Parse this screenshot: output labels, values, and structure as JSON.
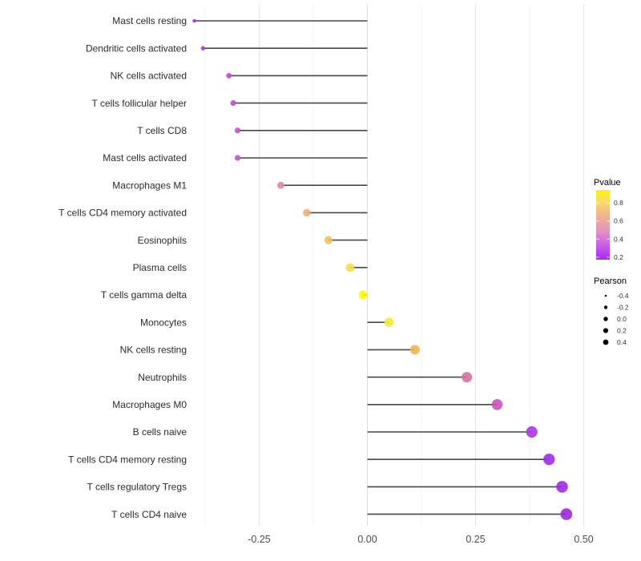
{
  "chart_data": {
    "type": "scatter",
    "variant": "lollipop",
    "title": "",
    "xlabel": "",
    "ylabel": "",
    "xlim": [
      -0.44,
      0.51
    ],
    "baseline_x": 0,
    "x_major_ticks": [
      -0.25,
      0.0,
      0.25,
      0.5
    ],
    "x_tick_labels": [
      "-0.25",
      "0.00",
      "0.25",
      "0.50"
    ],
    "x_minor_ticks": [
      -0.375,
      -0.125,
      0.125,
      0.375
    ],
    "grid": "vertical major and minor gridlines, no axis lines, no tick marks",
    "categories": [
      "Mast cells resting",
      "Dendritic cells activated",
      "NK cells activated",
      "T cells follicular helper",
      "T cells CD8",
      "Mast cells activated",
      "Macrophages M1",
      "T cells CD4 memory activated",
      "Eosinophils",
      "Plasma cells",
      "T cells gamma delta",
      "Monocytes",
      "NK cells resting",
      "Neutrophils",
      "Macrophages M0",
      "B cells naive",
      "T cells CD4 memory resting",
      "T cells regulatory  Tregs",
      "T cells CD4 naive"
    ],
    "points": [
      {
        "label": "Mast cells resting",
        "pearson": -0.4,
        "pvalue": 0.13,
        "color": "#A133E5"
      },
      {
        "label": "Dendritic cells activated",
        "pearson": -0.38,
        "pvalue": 0.15,
        "color": "#A838E2"
      },
      {
        "label": "NK cells activated",
        "pearson": -0.32,
        "pvalue": 0.28,
        "color": "#BC4ED6"
      },
      {
        "label": "T cells follicular helper",
        "pearson": -0.31,
        "pvalue": 0.29,
        "color": "#BE50D3"
      },
      {
        "label": "T cells CD8",
        "pearson": -0.3,
        "pvalue": 0.3,
        "color": "#C154D0"
      },
      {
        "label": "Mast cells activated",
        "pearson": -0.3,
        "pvalue": 0.31,
        "color": "#C257CE"
      },
      {
        "label": "Macrophages M1",
        "pearson": -0.2,
        "pvalue": 0.55,
        "color": "#DE8B9D"
      },
      {
        "label": "T cells CD4 memory activated",
        "pearson": -0.14,
        "pvalue": 0.67,
        "color": "#EFAF7D"
      },
      {
        "label": "Eosinophils",
        "pearson": -0.09,
        "pvalue": 0.74,
        "color": "#EFC35E"
      },
      {
        "label": "Plasma cells",
        "pearson": -0.04,
        "pvalue": 0.83,
        "color": "#F3DE4C"
      },
      {
        "label": "T cells gamma delta",
        "pearson": -0.01,
        "pvalue": 0.94,
        "color": "#FBF511"
      },
      {
        "label": "Monocytes",
        "pearson": 0.05,
        "pvalue": 0.88,
        "color": "#F7E93B"
      },
      {
        "label": "NK cells resting",
        "pearson": 0.11,
        "pvalue": 0.71,
        "color": "#EBB657"
      },
      {
        "label": "Neutrophils",
        "pearson": 0.23,
        "pvalue": 0.48,
        "color": "#D3729E"
      },
      {
        "label": "Macrophages M0",
        "pearson": 0.3,
        "pvalue": 0.36,
        "color": "#C754BA"
      },
      {
        "label": "B cells naive",
        "pearson": 0.38,
        "pvalue": 0.21,
        "color": "#A938E0"
      },
      {
        "label": "T cells CD4 memory resting",
        "pearson": 0.42,
        "pvalue": 0.17,
        "color": "#A12FE1"
      },
      {
        "label": "T cells regulatory  Tregs",
        "pearson": 0.45,
        "pvalue": 0.16,
        "color": "#9D2CDE"
      },
      {
        "label": "T cells CD4 naive",
        "pearson": 0.46,
        "pvalue": 0.15,
        "color": "#9B2BDB"
      }
    ],
    "color_legend": {
      "title": "Pvalue",
      "tick_labels": [
        "0.8",
        "0.6",
        "0.4",
        "0.2"
      ],
      "value_top": 0.95,
      "value_bottom": 0.15,
      "gradient_stops": [
        {
          "at": 0.0,
          "color": "#FCF316"
        },
        {
          "at": 0.18,
          "color": "#F8D96F"
        },
        {
          "at": 0.4,
          "color": "#EEAE96"
        },
        {
          "at": 0.6,
          "color": "#E293C4"
        },
        {
          "at": 0.82,
          "color": "#C557E8"
        },
        {
          "at": 1.0,
          "color": "#A52BF0"
        }
      ]
    },
    "size_legend": {
      "title": "Pearson",
      "tick_labels": [
        "-0.4",
        "-0.2",
        "0.0",
        "0.2",
        "0.4"
      ],
      "dot_color": "#000000"
    },
    "style_colors": {
      "segment": "#474747",
      "grid_major": "#E4E4E4",
      "grid_minor": "#F1F1F1",
      "axis_text": "#4D4D4D",
      "category_text": "#2B2B2B",
      "legend_text": "#303030",
      "background": "#FFFFFF"
    }
  }
}
